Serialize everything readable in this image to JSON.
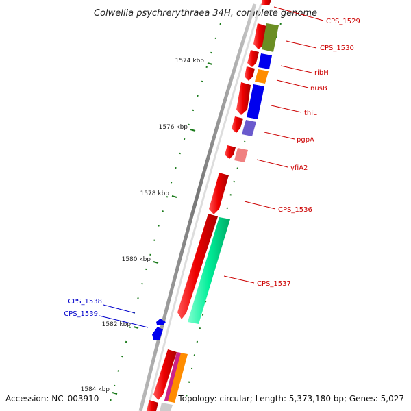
{
  "title": "Colwellia psychrerythraea 34H, complete genome",
  "footer": {
    "accession": "Accession: NC_003910",
    "topology": "Topology: circular; Length: 5,373,180 bp; Genes: 5,027"
  },
  "ticks": [
    "1574 kbp",
    "1576 kbp",
    "1578 kbp",
    "1580 kbp",
    "1582 kbp",
    "1584 kbp"
  ],
  "genes_top_strand": [
    "CPS_1529",
    "CPS_1530",
    "ribH",
    "nusB",
    "thiL",
    "pgpA",
    "yfiA2",
    "CPS_1536",
    "CPS_1537"
  ],
  "genes_bottom_strand": [
    "CPS_1538",
    "CPS_1539"
  ],
  "colors": {
    "backbone": "#888888",
    "top_label": "#cc0000",
    "bottom_label": "#0000cc",
    "tick": "#1a7a1a",
    "red": "#ee0000",
    "olive": "#6b8e23",
    "blue": "#0000ee",
    "orange": "#ff8c00",
    "slate": "#6a5acd",
    "pink": "#f08080",
    "mint": "#00ee99"
  }
}
